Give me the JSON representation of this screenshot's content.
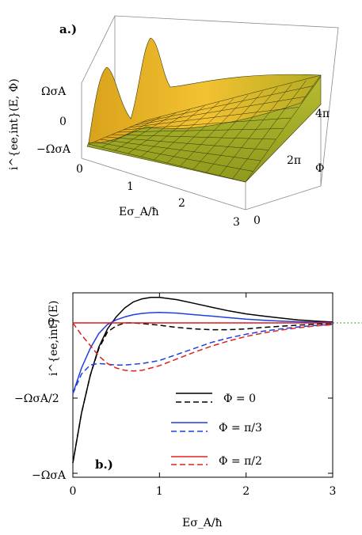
{
  "chart_data": [
    {
      "panel": "a.)",
      "type": "surface",
      "xlabel": "Eσ_A/ħ",
      "ylabel": "Φ",
      "zlabel": "i^{ee,int}(E, Φ)",
      "x_ticks": [
        "0",
        "1",
        "2",
        "3"
      ],
      "y_ticks": [
        "0",
        "2π",
        "4π"
      ],
      "z_ticks": [
        "ΩσA",
        "0",
        "−ΩσA"
      ],
      "xlim": [
        0,
        3
      ],
      "ylim": [
        0,
        12.566
      ],
      "zlim": [
        -1,
        1
      ],
      "peaks_at_Phi": [
        "2π",
        "4π"
      ],
      "surface_color": "#a9b52a"
    },
    {
      "panel": "b.)",
      "type": "line",
      "xlabel": "Eσ_A/ħ",
      "ylabel": "i^{ee,int}(E)",
      "x_ticks": [
        0,
        1,
        2,
        3
      ],
      "y_ticks": [
        "0",
        "−ΩσA/2",
        "−ΩσA"
      ],
      "xlim": [
        0,
        3
      ],
      "ylim": [
        -1,
        0.2
      ],
      "reference_line": {
        "y": 0,
        "color": "#2ca02c",
        "style": "dotted"
      },
      "legend": [
        "Φ = 0",
        "Φ = π/3",
        "Φ = π/2"
      ],
      "x": [
        0,
        0.1,
        0.2,
        0.3,
        0.4,
        0.5,
        0.6,
        0.7,
        0.8,
        0.9,
        1.0,
        1.2,
        1.4,
        1.6,
        1.8,
        2.0,
        2.2,
        2.4,
        2.6,
        2.8,
        3.0
      ],
      "series": [
        {
          "name": "Φ = 0",
          "color": "#000000",
          "style": "solid",
          "values": [
            -0.93,
            -0.6,
            -0.35,
            -0.16,
            -0.04,
            0.04,
            0.1,
            0.14,
            0.16,
            0.17,
            0.17,
            0.155,
            0.13,
            0.105,
            0.08,
            0.06,
            0.045,
            0.032,
            0.02,
            0.012,
            0.006
          ]
        },
        {
          "name": "Φ = 0",
          "color": "#000000",
          "style": "dashed",
          "values": [
            -0.93,
            -0.6,
            -0.35,
            -0.17,
            -0.06,
            -0.02,
            0.0,
            0.0,
            -0.005,
            -0.01,
            -0.015,
            -0.03,
            -0.04,
            -0.045,
            -0.045,
            -0.04,
            -0.03,
            -0.022,
            -0.015,
            -0.008,
            -0.004
          ]
        },
        {
          "name": "Φ = π/3",
          "color": "#1f3fe0",
          "style": "solid",
          "values": [
            -0.47,
            -0.3,
            -0.17,
            -0.07,
            -0.01,
            0.02,
            0.04,
            0.055,
            0.063,
            0.068,
            0.07,
            0.065,
            0.055,
            0.045,
            0.035,
            0.025,
            0.018,
            0.012,
            0.008,
            0.005,
            0.002
          ]
        },
        {
          "name": "Φ = π/3",
          "color": "#1f3fe0",
          "style": "dashed",
          "values": [
            -0.47,
            -0.34,
            -0.28,
            -0.27,
            -0.275,
            -0.28,
            -0.28,
            -0.275,
            -0.27,
            -0.26,
            -0.25,
            -0.21,
            -0.17,
            -0.13,
            -0.1,
            -0.075,
            -0.055,
            -0.04,
            -0.027,
            -0.017,
            -0.01
          ]
        },
        {
          "name": "Φ = π/2",
          "color": "#e02020",
          "style": "solid",
          "values": [
            0,
            0,
            0,
            0,
            0,
            0,
            0,
            0,
            0,
            0,
            0,
            0,
            0,
            0,
            0,
            0,
            0,
            0,
            0,
            0,
            0
          ]
        },
        {
          "name": "Φ = π/2",
          "color": "#e02020",
          "style": "dashed",
          "values": [
            0,
            -0.08,
            -0.15,
            -0.22,
            -0.27,
            -0.3,
            -0.315,
            -0.32,
            -0.315,
            -0.3,
            -0.285,
            -0.24,
            -0.195,
            -0.155,
            -0.12,
            -0.09,
            -0.067,
            -0.048,
            -0.033,
            -0.02,
            -0.012
          ]
        }
      ]
    }
  ]
}
